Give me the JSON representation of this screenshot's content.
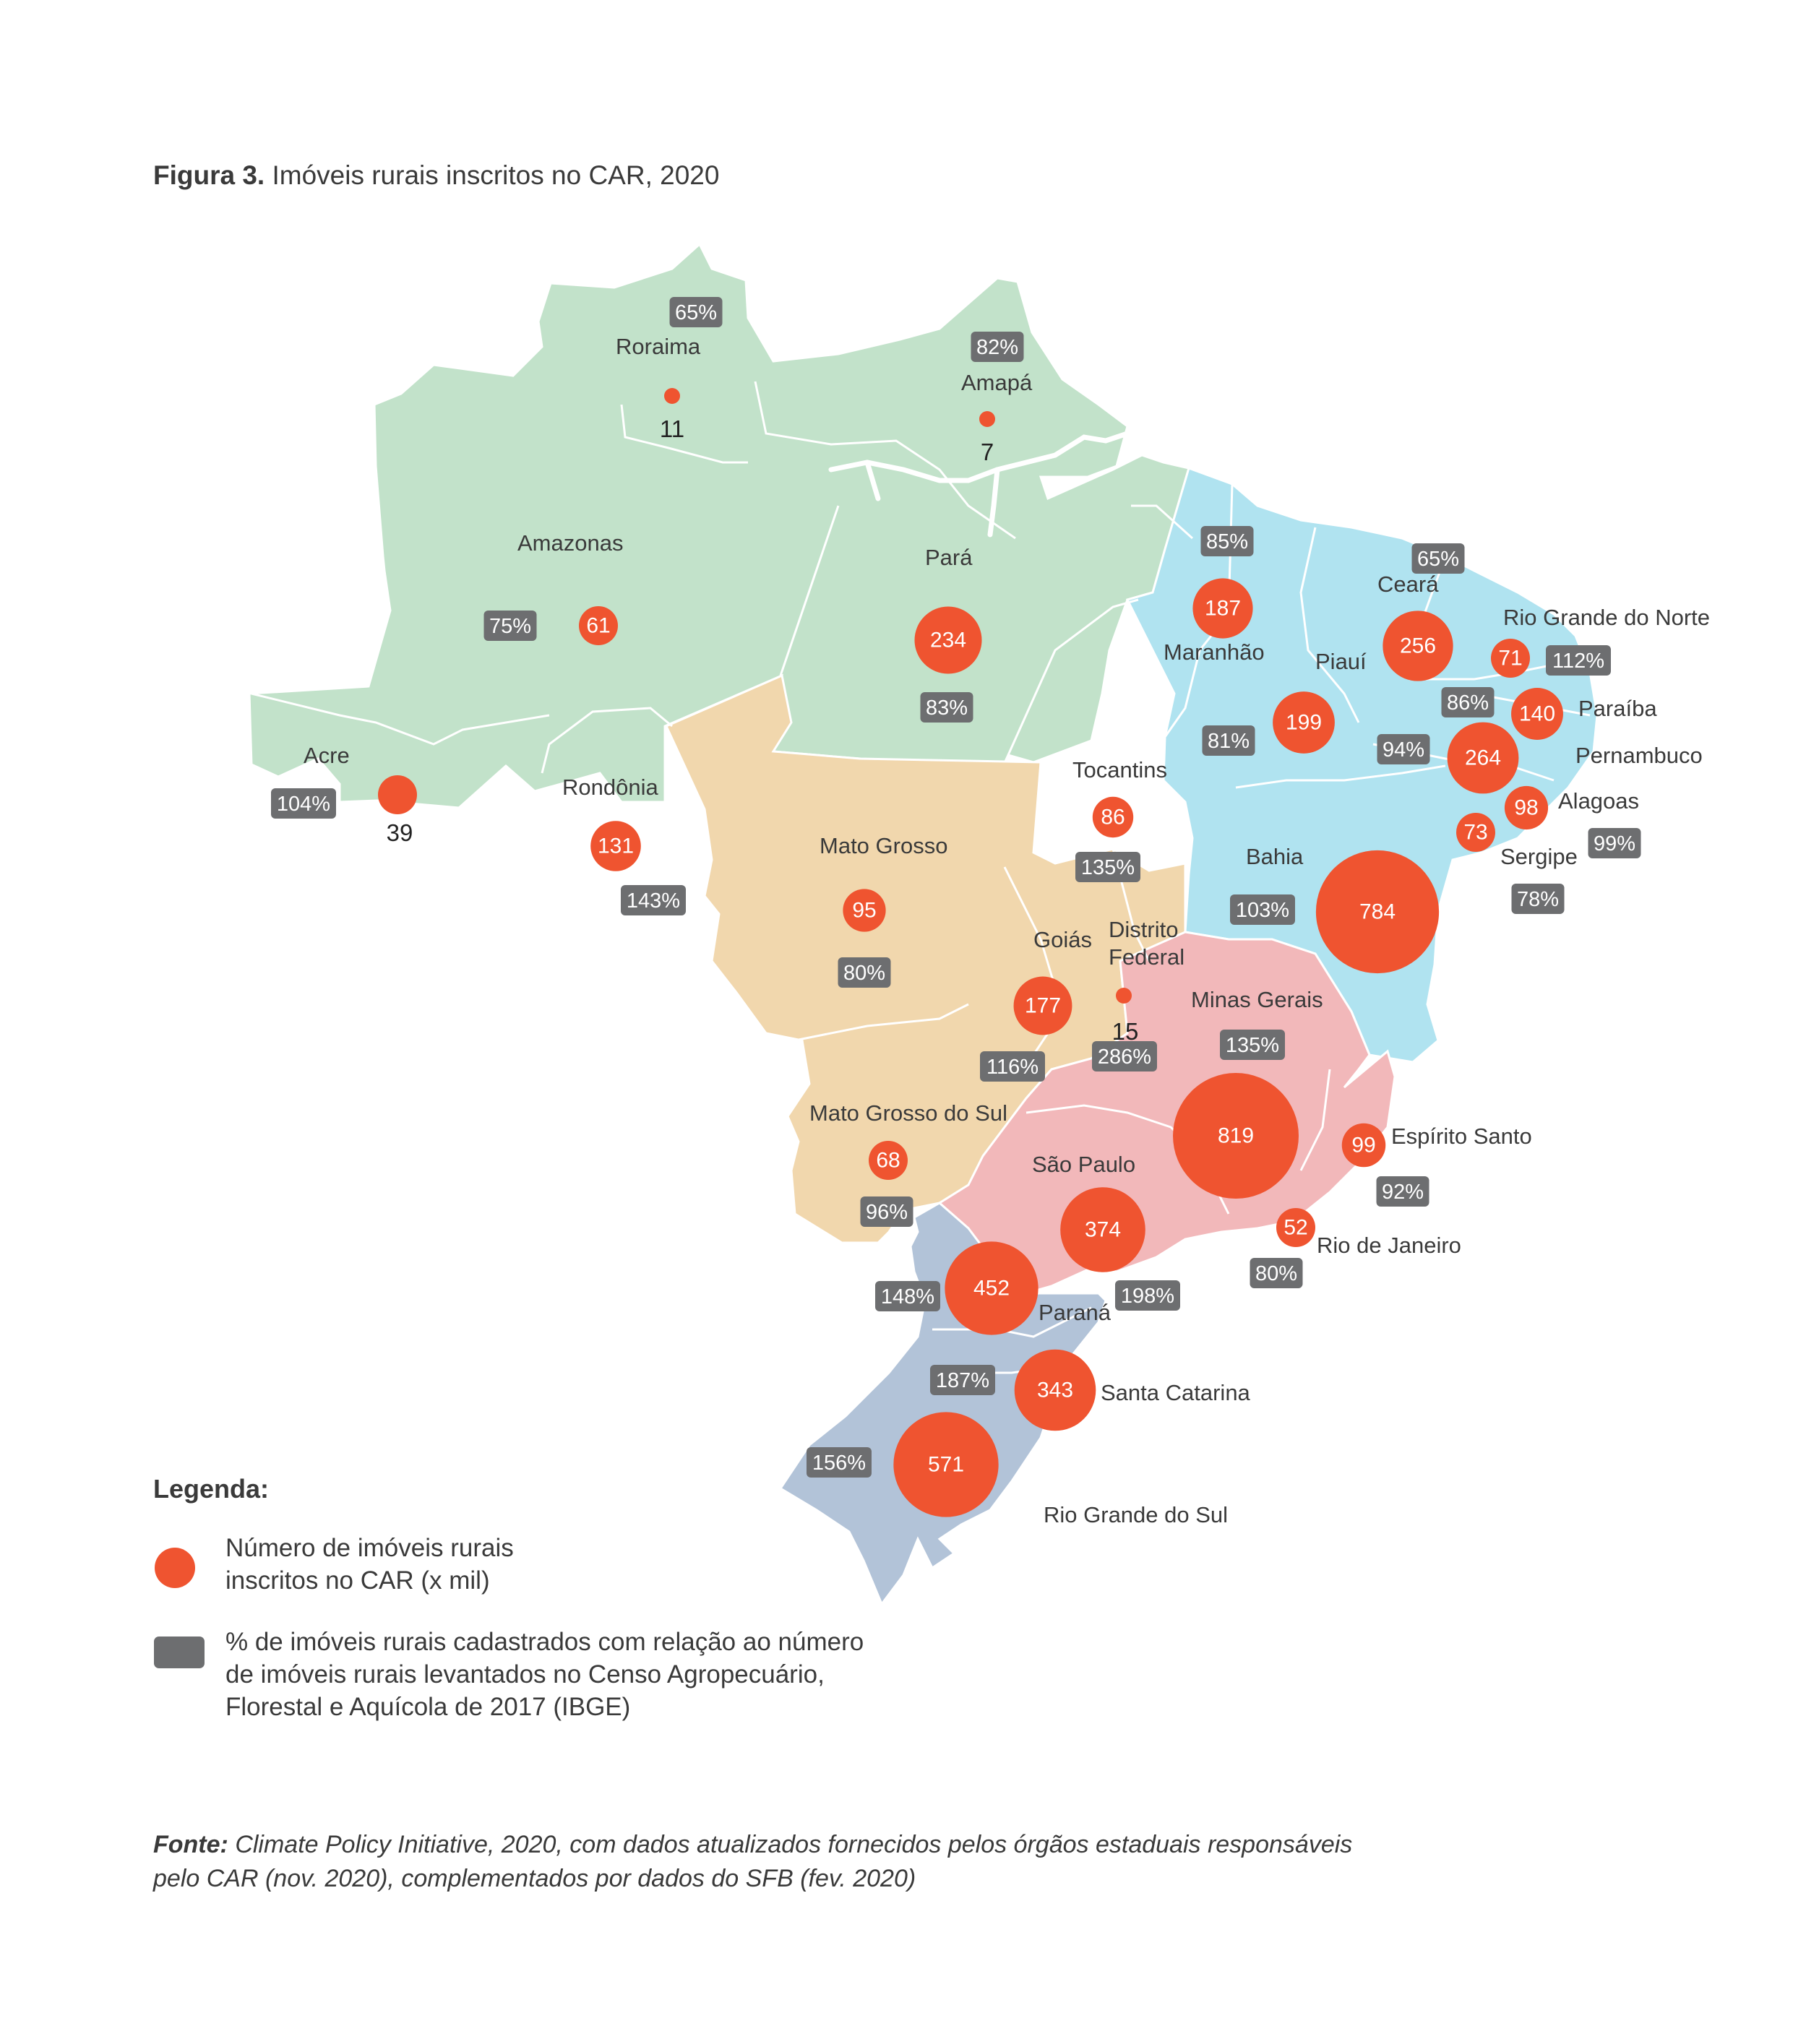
{
  "title": {
    "prefix": "Figura 3.",
    "text": "Imóveis rurais inscritos no CAR, 2020"
  },
  "colors": {
    "north": "#c2e2ca",
    "northeast": "#b0e3f0",
    "centerwest": "#f1d7ad",
    "southeast": "#f2b8ba",
    "south": "#b2c3d8",
    "bubble": "#ef5430",
    "pct_badge": "#6d6e70"
  },
  "states": [
    {
      "name": "Roraima",
      "region": "north",
      "registrations_thousand": 11,
      "pct_census": "65%"
    },
    {
      "name": "Amapá",
      "region": "north",
      "registrations_thousand": 7,
      "pct_census": "82%"
    },
    {
      "name": "Amazonas",
      "region": "north",
      "registrations_thousand": 61,
      "pct_census": "75%"
    },
    {
      "name": "Pará",
      "region": "north",
      "registrations_thousand": 234,
      "pct_census": "83%"
    },
    {
      "name": "Acre",
      "region": "north",
      "registrations_thousand": 39,
      "pct_census": "104%"
    },
    {
      "name": "Rondônia",
      "region": "north",
      "registrations_thousand": 131,
      "pct_census": "143%"
    },
    {
      "name": "Tocantins",
      "region": "north",
      "registrations_thousand": 86,
      "pct_census": "135%"
    },
    {
      "name": "Maranhão",
      "region": "northeast",
      "registrations_thousand": 187,
      "pct_census": "85%"
    },
    {
      "name": "Piauí",
      "region": "northeast",
      "registrations_thousand": 199,
      "pct_census": "81%"
    },
    {
      "name": "Ceará",
      "region": "northeast",
      "registrations_thousand": 256,
      "pct_census": "65%"
    },
    {
      "name": "Rio Grande do Norte",
      "region": "northeast",
      "registrations_thousand": 71,
      "pct_census": "112%"
    },
    {
      "name": "Paraíba",
      "region": "northeast",
      "registrations_thousand": 140,
      "pct_census": "86%"
    },
    {
      "name": "Pernambuco",
      "region": "northeast",
      "registrations_thousand": 264,
      "pct_census": "94%"
    },
    {
      "name": "Alagoas",
      "region": "northeast",
      "registrations_thousand": 98,
      "pct_census": "99%"
    },
    {
      "name": "Sergipe",
      "region": "northeast",
      "registrations_thousand": 73,
      "pct_census": "78%"
    },
    {
      "name": "Bahia",
      "region": "northeast",
      "registrations_thousand": 784,
      "pct_census": "103%"
    },
    {
      "name": "Mato Grosso",
      "region": "centerwest",
      "registrations_thousand": 95,
      "pct_census": "80%"
    },
    {
      "name": "Goiás",
      "region": "centerwest",
      "registrations_thousand": 177,
      "pct_census": "116%"
    },
    {
      "name": "Distrito Federal",
      "region": "centerwest",
      "registrations_thousand": 15,
      "pct_census": "286%"
    },
    {
      "name": "Mato Grosso do Sul",
      "region": "centerwest",
      "registrations_thousand": 68,
      "pct_census": "96%"
    },
    {
      "name": "Minas Gerais",
      "region": "southeast",
      "registrations_thousand": 819,
      "pct_census": "135%"
    },
    {
      "name": "Espírito Santo",
      "region": "southeast",
      "registrations_thousand": 99,
      "pct_census": "92%"
    },
    {
      "name": "Rio de Janeiro",
      "region": "southeast",
      "registrations_thousand": 52,
      "pct_census": "80%"
    },
    {
      "name": "São Paulo",
      "region": "southeast",
      "registrations_thousand": 374,
      "pct_census": "198%"
    },
    {
      "name": "Paraná",
      "region": "south",
      "registrations_thousand": 452,
      "pct_census": "148%"
    },
    {
      "name": "Santa Catarina",
      "region": "south",
      "registrations_thousand": 343,
      "pct_census": "187%"
    },
    {
      "name": "Rio Grande do Sul",
      "region": "south",
      "registrations_thousand": 571,
      "pct_census": "156%"
    }
  ],
  "distrito_federal_label": [
    "Distrito",
    "Federal"
  ],
  "legend": {
    "title": "Legenda:",
    "bubble_text": "Número de imóveis rurais\ninscritos no CAR (x mil)",
    "badge_text": "% de imóveis rurais cadastrados com relação ao número\nde imóveis rurais levantados no Censo Agropecuário,\nFlorestal e Aquícola de 2017 (IBGE)"
  },
  "source": {
    "prefix": "Fonte:",
    "text": "Climate Policy Initiative, 2020, com dados atualizados fornecidos pelos órgãos estaduais responsáveis pelo CAR (nov. 2020), complementados por dados do SFB (fev. 2020)"
  }
}
